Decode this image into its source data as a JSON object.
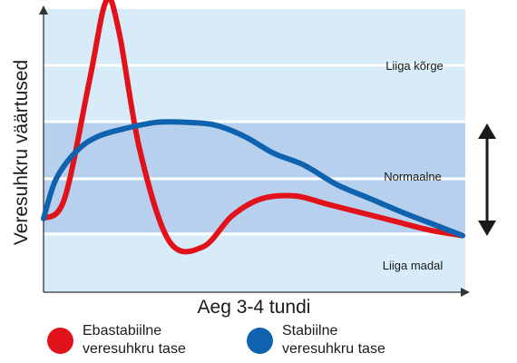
{
  "chart_data": {
    "type": "line",
    "xlabel": "Aeg 3-4 tundi",
    "ylabel": "Veresuhkru väärtused",
    "zones": [
      {
        "label": "Liiga kõrge",
        "color": "#d7ecf8"
      },
      {
        "label": "Normaalne",
        "color": "#b7d0ee"
      },
      {
        "label": "Liiga madal",
        "color": "#d7ecf8"
      }
    ],
    "x": [
      0,
      0.1,
      0.2,
      0.3,
      0.4,
      0.5,
      0.6,
      0.7,
      0.8,
      0.9,
      1.0
    ],
    "series": [
      {
        "name": "Ebastabiilne veresuhkru tase",
        "color": "#e2121b",
        "x": [
          0,
          0.05,
          0.11,
          0.15,
          0.18,
          0.23,
          0.3,
          0.38,
          0.45,
          0.52,
          0.6,
          0.68,
          0.76,
          0.84,
          0.92,
          1.0
        ],
        "y": [
          0.26,
          0.33,
          0.75,
          1.03,
          0.92,
          0.5,
          0.18,
          0.16,
          0.27,
          0.33,
          0.34,
          0.31,
          0.28,
          0.25,
          0.22,
          0.2
        ]
      },
      {
        "name": "Stabiilne veresuhkru tase",
        "color": "#0f62ae",
        "x": [
          0,
          0.03,
          0.08,
          0.13,
          0.2,
          0.27,
          0.34,
          0.41,
          0.48,
          0.55,
          0.62,
          0.7,
          0.78,
          0.86,
          0.93,
          1.0
        ],
        "y": [
          0.26,
          0.4,
          0.5,
          0.55,
          0.58,
          0.6,
          0.6,
          0.59,
          0.55,
          0.49,
          0.45,
          0.38,
          0.33,
          0.28,
          0.24,
          0.2
        ]
      }
    ],
    "xlim": [
      0,
      1
    ],
    "ylim": [
      0,
      1
    ],
    "grid": true,
    "legend": "bottom"
  },
  "legend": {
    "item1": {
      "line1": "Ebastabiilne",
      "line2": "veresuhkru tase",
      "color": "#e2121b"
    },
    "item2": {
      "line1": "Stabiilne",
      "line2": "veresuhkru tase",
      "color": "#0f62ae"
    }
  }
}
